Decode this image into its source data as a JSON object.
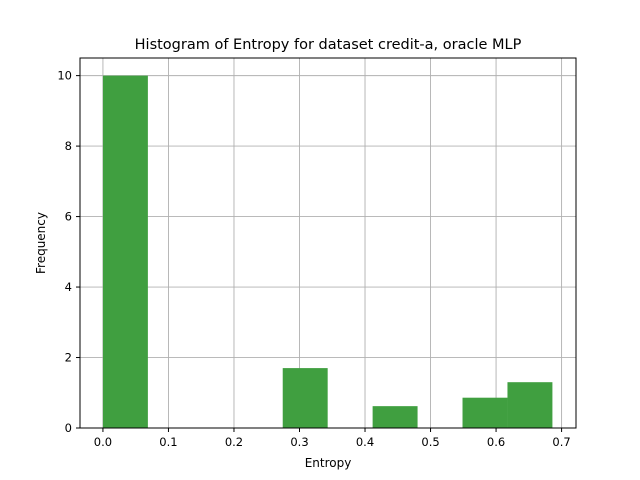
{
  "chart_data": {
    "type": "bar",
    "title": "Histogram of Entropy for dataset credit-a, oracle MLP",
    "xlabel": "Entropy",
    "ylabel": "Frequency",
    "xlim": [
      -0.035,
      0.722
    ],
    "ylim": [
      0,
      10.5
    ],
    "xticks": [
      "0.0",
      "0.1",
      "0.2",
      "0.3",
      "0.4",
      "0.5",
      "0.6",
      "0.7"
    ],
    "yticks": [
      "0",
      "2",
      "4",
      "6",
      "8",
      "10"
    ],
    "grid": true,
    "legend": "none",
    "bar_color": "#409f40",
    "bins": [
      {
        "x0": 0.0,
        "x1": 0.0686,
        "value": 10.0
      },
      {
        "x0": 0.0686,
        "x1": 0.1372,
        "value": 0
      },
      {
        "x0": 0.1372,
        "x1": 0.2058,
        "value": 0
      },
      {
        "x0": 0.2058,
        "x1": 0.2744,
        "value": 0
      },
      {
        "x0": 0.2744,
        "x1": 0.343,
        "value": 1.7
      },
      {
        "x0": 0.343,
        "x1": 0.4116,
        "value": 0
      },
      {
        "x0": 0.4116,
        "x1": 0.4802,
        "value": 0.62
      },
      {
        "x0": 0.4802,
        "x1": 0.5488,
        "value": 0
      },
      {
        "x0": 0.5488,
        "x1": 0.6174,
        "value": 0.86
      },
      {
        "x0": 0.6174,
        "x1": 0.686,
        "value": 1.3
      }
    ]
  }
}
